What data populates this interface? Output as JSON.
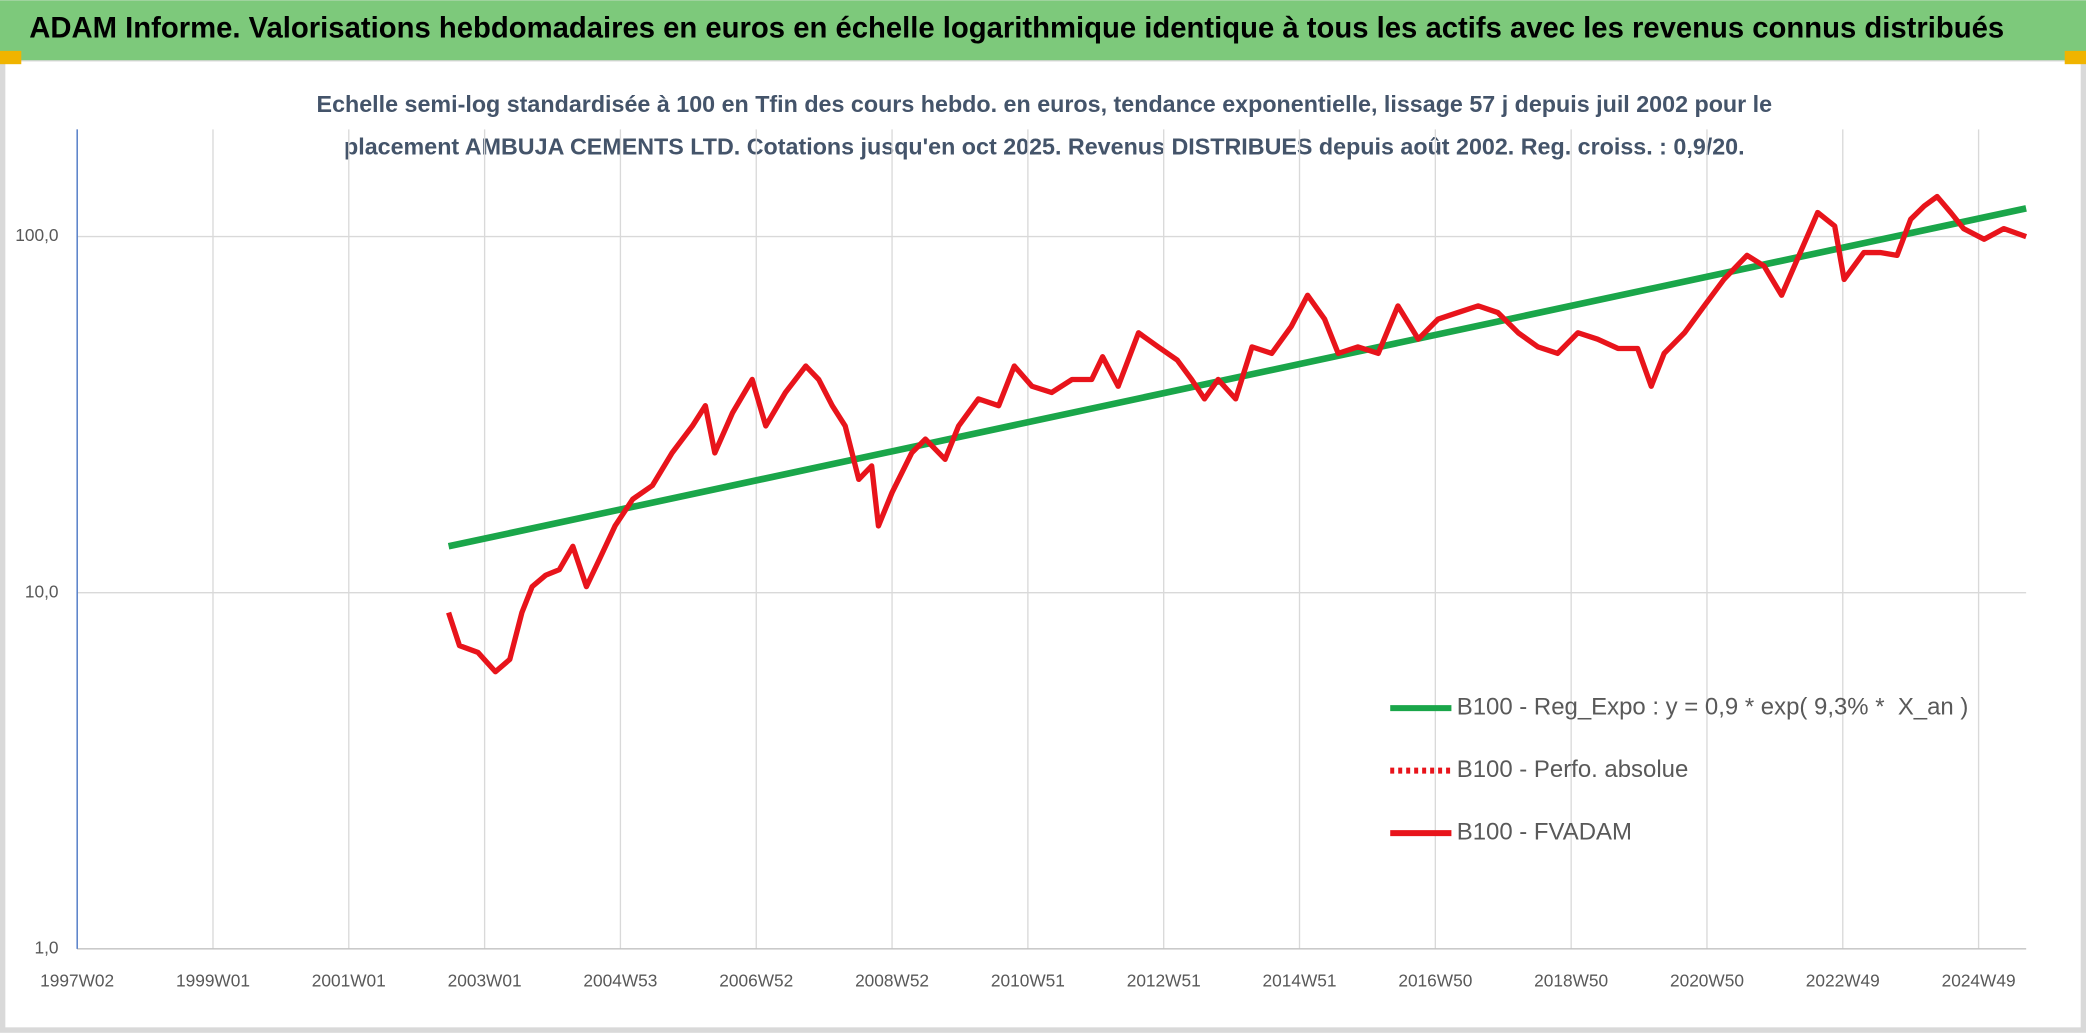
{
  "chart_data": {
    "type": "line",
    "title": "ADAM Informe. Valorisations hebdomadaires en euros en échelle logarithmique identique à tous les actifs avec les revenus connus distribués",
    "subtitle": "Echelle semi-log standardisée à 100 en Tfin des cours hebdo. en euros, tendance exponentielle, lissage 57 j depuis juil 2002 pour le placement AMBUJA CEMENTS LTD. Cotations jusqu'en oct 2025. Revenus DISTRIBUES depuis août 2002. Reg. croiss. : 0,9/20.",
    "log_scale": true,
    "grid": true,
    "legend": "right",
    "xlim": [
      1997,
      2025.7
    ],
    "xticks": [
      {
        "value": 1997,
        "label": "1997W02"
      },
      {
        "value": 1999,
        "label": "1999W01"
      },
      {
        "value": 2001,
        "label": "2001W01"
      },
      {
        "value": 2003,
        "label": "2003W01"
      },
      {
        "value": 2005,
        "label": "2004W53"
      },
      {
        "value": 2007,
        "label": "2006W52"
      },
      {
        "value": 2009,
        "label": "2008W52"
      },
      {
        "value": 2011,
        "label": "2010W51"
      },
      {
        "value": 2013,
        "label": "2012W51"
      },
      {
        "value": 2015,
        "label": "2014W51"
      },
      {
        "value": 2017,
        "label": "2016W50"
      },
      {
        "value": 2019,
        "label": "2018W50"
      },
      {
        "value": 2021,
        "label": "2020W50"
      },
      {
        "value": 2023,
        "label": "2022W49"
      },
      {
        "value": 2025,
        "label": "2024W49"
      }
    ],
    "ylim": [
      1,
      200
    ],
    "yticks": [
      {
        "value": 1,
        "label": "1,0"
      },
      {
        "value": 10,
        "label": "10,0"
      },
      {
        "value": 100,
        "label": "100,0"
      }
    ],
    "series": [
      {
        "name": "B100 - Reg_Expo : y = 0,9 * exp( 9,3% *  X_an )",
        "color": "#1aa64a",
        "dash": "solid",
        "x": [
          2002.47,
          2025.7
        ],
        "values": [
          13.5,
          120
        ]
      },
      {
        "name": "B100 - Perfo. absolue",
        "color": "#e8141b",
        "dash": "dotted",
        "x": [],
        "values": []
      },
      {
        "name": "B100 - FVADAM",
        "color": "#e8141b",
        "dash": "solid",
        "x": [
          2002.47,
          2002.63,
          2002.9,
          2003.16,
          2003.37,
          2003.55,
          2003.7,
          2003.9,
          2004.1,
          2004.3,
          2004.5,
          2004.69,
          2004.92,
          2005.18,
          2005.47,
          2005.76,
          2006.06,
          2006.25,
          2006.39,
          2006.65,
          2006.94,
          2007.14,
          2007.43,
          2007.73,
          2007.92,
          2008.12,
          2008.31,
          2008.51,
          2008.7,
          2008.8,
          2009.0,
          2009.29,
          2009.49,
          2009.78,
          2009.98,
          2010.27,
          2010.57,
          2010.8,
          2011.06,
          2011.35,
          2011.65,
          2011.94,
          2012.1,
          2012.33,
          2012.63,
          2012.92,
          2013.2,
          2013.41,
          2013.6,
          2013.8,
          2014.06,
          2014.3,
          2014.59,
          2014.88,
          2015.12,
          2015.37,
          2015.57,
          2015.86,
          2016.16,
          2016.45,
          2016.75,
          2017.04,
          2017.33,
          2017.63,
          2017.92,
          2018.22,
          2018.51,
          2018.8,
          2019.1,
          2019.39,
          2019.69,
          2019.98,
          2020.18,
          2020.37,
          2020.67,
          2020.96,
          2021.25,
          2021.59,
          2021.84,
          2022.1,
          2022.33,
          2022.63,
          2022.88,
          2023.02,
          2023.31,
          2023.55,
          2023.8,
          2024.0,
          2024.2,
          2024.39,
          2024.59,
          2024.78,
          2025.08,
          2025.37,
          2025.7
        ],
        "values": [
          8.8,
          7.1,
          6.8,
          6.0,
          6.5,
          8.8,
          10.4,
          11.2,
          11.6,
          13.5,
          10.4,
          12.4,
          15.4,
          18.3,
          20,
          24.7,
          29.4,
          33.5,
          24.7,
          32,
          39.7,
          29.4,
          36.5,
          43.3,
          39.7,
          33.5,
          29.4,
          20.8,
          22.7,
          15.4,
          19.1,
          24.7,
          27,
          23.7,
          29.4,
          35,
          33.5,
          43.3,
          38,
          36.5,
          39.7,
          39.7,
          46,
          38,
          53.7,
          49,
          45,
          39.7,
          35,
          39.7,
          35,
          49,
          47,
          56,
          68.4,
          58.6,
          47,
          49,
          47,
          63.9,
          51.5,
          58.6,
          61.2,
          63.9,
          61.2,
          53.7,
          49,
          47,
          53.7,
          51.5,
          48.5,
          48.5,
          38,
          47,
          53.7,
          63.9,
          75.8,
          88.6,
          82.7,
          68.4,
          86.3,
          116.8,
          107,
          75.8,
          90.2,
          90.2,
          88.6,
          111.8,
          121.9,
          129.5,
          116.8,
          105.3,
          98.3,
          105.3,
          100
        ]
      }
    ]
  }
}
